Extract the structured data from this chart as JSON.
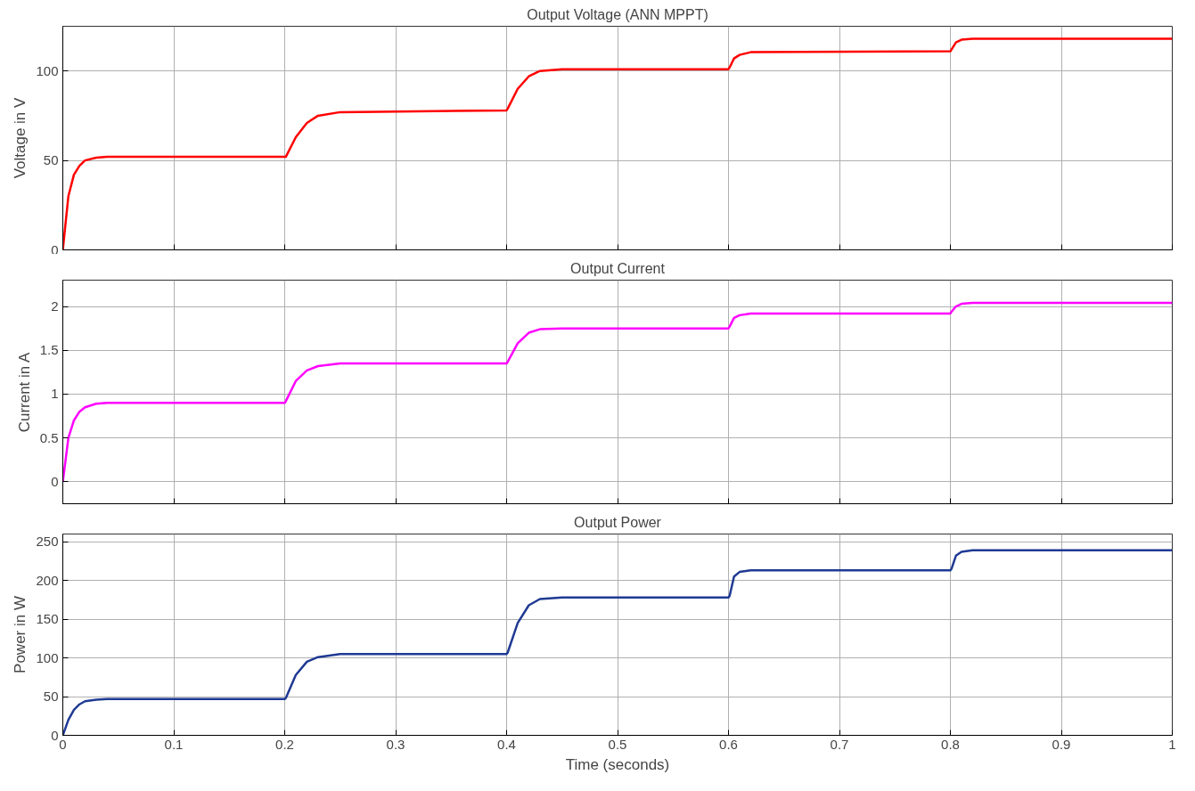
{
  "chart_data": [
    {
      "type": "line",
      "title": "Output Voltage (ANN MPPT)",
      "ylabel": "Voltage in V",
      "xlim": [
        0,
        1
      ],
      "xticks": [
        0,
        0.1,
        0.2,
        0.3,
        0.4,
        0.5,
        0.6,
        0.7,
        0.8,
        0.9,
        1
      ],
      "ylim": [
        0,
        125
      ],
      "yticks": [
        0,
        50,
        100
      ],
      "grid": true,
      "tick_labels": "y",
      "x": [
        0,
        0.005,
        0.01,
        0.015,
        0.02,
        0.03,
        0.04,
        0.06,
        0.2,
        0.201,
        0.21,
        0.22,
        0.23,
        0.25,
        0.4,
        0.401,
        0.41,
        0.42,
        0.43,
        0.45,
        0.6,
        0.601,
        0.605,
        0.61,
        0.62,
        0.8,
        0.801,
        0.805,
        0.81,
        0.82,
        1
      ],
      "series": [
        {
          "color": "#ff0000",
          "values": [
            0,
            30,
            42,
            47,
            50,
            51.5,
            52,
            52,
            52,
            52,
            63,
            71,
            75,
            77,
            78,
            79,
            90,
            97,
            100,
            101,
            101,
            102,
            107,
            109,
            110.5,
            111,
            112,
            116,
            117.5,
            118,
            118
          ]
        }
      ]
    },
    {
      "type": "line",
      "title": "Output Current",
      "ylabel": "Current in A",
      "xlim": [
        0,
        1
      ],
      "xticks": [
        0,
        0.1,
        0.2,
        0.3,
        0.4,
        0.5,
        0.6,
        0.7,
        0.8,
        0.9,
        1
      ],
      "ylim": [
        -0.25,
        2.3
      ],
      "yticks": [
        0,
        0.5,
        1,
        1.5,
        2
      ],
      "grid": true,
      "tick_labels": "y",
      "x": [
        0,
        0.005,
        0.01,
        0.015,
        0.02,
        0.03,
        0.04,
        0.06,
        0.2,
        0.201,
        0.21,
        0.22,
        0.23,
        0.25,
        0.4,
        0.401,
        0.41,
        0.42,
        0.43,
        0.45,
        0.6,
        0.601,
        0.605,
        0.61,
        0.62,
        0.8,
        0.801,
        0.805,
        0.81,
        0.82,
        1
      ],
      "series": [
        {
          "color": "#ff00ff",
          "values": [
            0,
            0.5,
            0.7,
            0.8,
            0.85,
            0.89,
            0.9,
            0.9,
            0.9,
            0.92,
            1.15,
            1.27,
            1.32,
            1.35,
            1.35,
            1.37,
            1.58,
            1.7,
            1.74,
            1.75,
            1.75,
            1.77,
            1.87,
            1.9,
            1.92,
            1.92,
            1.94,
            2.0,
            2.03,
            2.04,
            2.04
          ]
        }
      ]
    },
    {
      "type": "line",
      "title": "Output Power",
      "xlabel": "Time (seconds)",
      "ylabel": "Power in W",
      "xlim": [
        0,
        1
      ],
      "xticks": [
        0,
        0.1,
        0.2,
        0.3,
        0.4,
        0.5,
        0.6,
        0.7,
        0.8,
        0.9,
        1
      ],
      "ylim": [
        0,
        260
      ],
      "yticks": [
        0,
        50,
        100,
        150,
        200,
        250
      ],
      "grid": true,
      "x": [
        0,
        0.005,
        0.01,
        0.015,
        0.02,
        0.03,
        0.04,
        0.06,
        0.2,
        0.201,
        0.21,
        0.22,
        0.23,
        0.25,
        0.4,
        0.401,
        0.41,
        0.42,
        0.43,
        0.45,
        0.6,
        0.601,
        0.605,
        0.61,
        0.62,
        0.8,
        0.801,
        0.805,
        0.81,
        0.82,
        1
      ],
      "series": [
        {
          "color": "#1f3a93",
          "values": [
            0,
            20,
            33,
            40,
            44,
            46,
            47,
            47,
            47,
            48,
            78,
            95,
            101,
            105,
            105,
            107,
            145,
            168,
            176,
            178,
            178,
            180,
            205,
            211,
            213,
            213,
            215,
            232,
            237,
            239,
            239
          ]
        }
      ]
    }
  ]
}
